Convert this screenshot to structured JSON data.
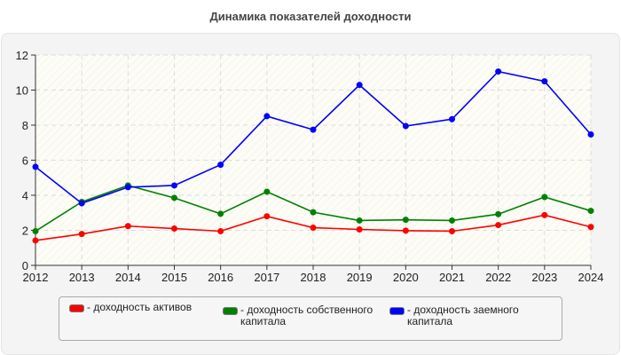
{
  "chart_data": {
    "type": "line",
    "title": "Динамика показателей доходности",
    "xlabel": "",
    "ylabel": "",
    "x": [
      2012,
      2013,
      2014,
      2015,
      2016,
      2017,
      2018,
      2019,
      2020,
      2021,
      2022,
      2023,
      2024
    ],
    "ylim": [
      0,
      12
    ],
    "yticks": [
      0,
      2,
      4,
      6,
      8,
      10,
      12
    ],
    "grid": true,
    "legend_placement": "bottom",
    "series": [
      {
        "name": "- доходность активов",
        "color": "#ff0000",
        "values": [
          1.42,
          1.79,
          2.24,
          2.1,
          1.95,
          2.8,
          2.15,
          2.05,
          1.98,
          1.95,
          2.3,
          2.87,
          2.19
        ]
      },
      {
        "name": "- доходность собственного капитала",
        "color": "#008000",
        "values": [
          1.95,
          3.62,
          4.56,
          3.85,
          2.94,
          4.2,
          3.03,
          2.56,
          2.6,
          2.56,
          2.92,
          3.9,
          3.11
        ]
      },
      {
        "name": "- доходность заемного капитала",
        "color": "#0000ff",
        "values": [
          5.62,
          3.54,
          4.46,
          4.56,
          5.74,
          8.51,
          7.74,
          10.29,
          7.95,
          8.34,
          11.06,
          10.5,
          7.47
        ]
      }
    ]
  }
}
